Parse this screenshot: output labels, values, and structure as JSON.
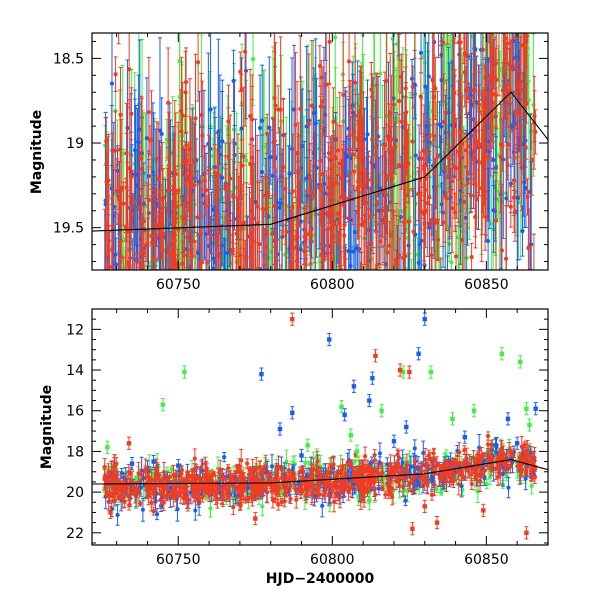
{
  "colors": {
    "green": "#44ee44",
    "blue": "#1a5ef0",
    "red": "#f23c22",
    "frame": "#000000"
  },
  "chart_data": [
    {
      "type": "scatter",
      "title": "",
      "xlabel": "",
      "ylabel": "Magnitude",
      "xlim": [
        60722,
        60870
      ],
      "ylim": [
        19.75,
        18.35
      ],
      "y_inverted": true,
      "xticks": [
        60750,
        60800,
        60850
      ],
      "xtick_labels": [
        "60750",
        "60800",
        "60850"
      ],
      "yticks": [
        18.5,
        19,
        19.5
      ],
      "ytick_labels": [
        "18.5",
        "19",
        "19.5"
      ],
      "grid": false,
      "legend": "none",
      "error_bars": true,
      "series": [
        {
          "color": "green",
          "n_points": 420,
          "mean_mag": 19.3,
          "mag_scatter": 0.4,
          "typical_err": 0.25
        },
        {
          "color": "blue",
          "n_points": 420,
          "mean_mag": 19.3,
          "mag_scatter": 0.4,
          "typical_err": 0.25
        },
        {
          "color": "red",
          "n_points": 600,
          "mean_mag": 19.35,
          "mag_scatter": 0.4,
          "typical_err": 0.2
        }
      ],
      "trend_line": {
        "x": [
          60722,
          60780,
          60830,
          60858,
          60870
        ],
        "y": [
          19.52,
          19.48,
          19.2,
          18.7,
          18.98
        ]
      }
    },
    {
      "type": "scatter",
      "title": "",
      "xlabel": "HJD−2400000",
      "ylabel": "Magnitude",
      "xlim": [
        60722,
        60870
      ],
      "ylim": [
        22.6,
        11.0
      ],
      "y_inverted": true,
      "xticks": [
        60750,
        60800,
        60850
      ],
      "xtick_labels": [
        "60750",
        "60800",
        "60850"
      ],
      "yticks": [
        12,
        14,
        16,
        18,
        20,
        22
      ],
      "ytick_labels": [
        "12",
        "14",
        "16",
        "18",
        "20",
        "22"
      ],
      "grid": false,
      "legend": "none",
      "error_bars": true,
      "trend_line": {
        "x": [
          60722,
          60780,
          60830,
          60858,
          60870
        ],
        "y": [
          19.6,
          19.55,
          19.1,
          18.4,
          18.9
        ]
      },
      "outliers": {
        "green": [
          [
            60727,
            17.8
          ],
          [
            60745,
            15.7
          ],
          [
            60752,
            14.1
          ],
          [
            60792,
            17.7
          ],
          [
            60803,
            15.8
          ],
          [
            60806,
            17.2
          ],
          [
            60808,
            18.0
          ],
          [
            60816,
            16.0
          ],
          [
            60823,
            14.1
          ],
          [
            60832,
            14.1
          ],
          [
            60839,
            16.4
          ],
          [
            60846,
            16.0
          ],
          [
            60855,
            13.2
          ],
          [
            60861,
            13.6
          ],
          [
            60863,
            15.9
          ],
          [
            60864,
            16.7
          ]
        ],
        "blue": [
          [
            60735,
            18.6
          ],
          [
            60742,
            18.5
          ],
          [
            60750,
            18.7
          ],
          [
            60777,
            14.2
          ],
          [
            60783,
            16.9
          ],
          [
            60787,
            16.1
          ],
          [
            60790,
            18.2
          ],
          [
            60799,
            12.5
          ],
          [
            60804,
            16.2
          ],
          [
            60807,
            14.8
          ],
          [
            60812,
            15.5
          ],
          [
            60813,
            14.4
          ],
          [
            60820,
            17.5
          ],
          [
            60824,
            16.8
          ],
          [
            60828,
            13.2
          ],
          [
            60830,
            11.5
          ],
          [
            60843,
            17.3
          ],
          [
            60853,
            17.7
          ],
          [
            60857,
            16.4
          ],
          [
            60860,
            17.6
          ],
          [
            60866,
            15.9
          ]
        ],
        "red": [
          [
            60728,
            21.0
          ],
          [
            60734,
            17.6
          ],
          [
            60770,
            20.6
          ],
          [
            60775,
            21.3
          ],
          [
            60787,
            11.5
          ],
          [
            60814,
            13.3
          ],
          [
            60822,
            14.0
          ],
          [
            60825,
            14.1
          ],
          [
            60826,
            21.8
          ],
          [
            60830,
            20.7
          ],
          [
            60834,
            21.5
          ],
          [
            60849,
            20.9
          ],
          [
            60863,
            22.0
          ]
        ]
      },
      "series": [
        {
          "color": "green",
          "n_points": 320,
          "mean_mag": 19.4,
          "mag_scatter": 0.45,
          "typical_err": 0.3
        },
        {
          "color": "blue",
          "n_points": 320,
          "mean_mag": 19.5,
          "mag_scatter": 0.5,
          "typical_err": 0.3
        },
        {
          "color": "red",
          "n_points": 650,
          "mean_mag": 19.5,
          "mag_scatter": 0.45,
          "typical_err": 0.25
        }
      ]
    }
  ]
}
